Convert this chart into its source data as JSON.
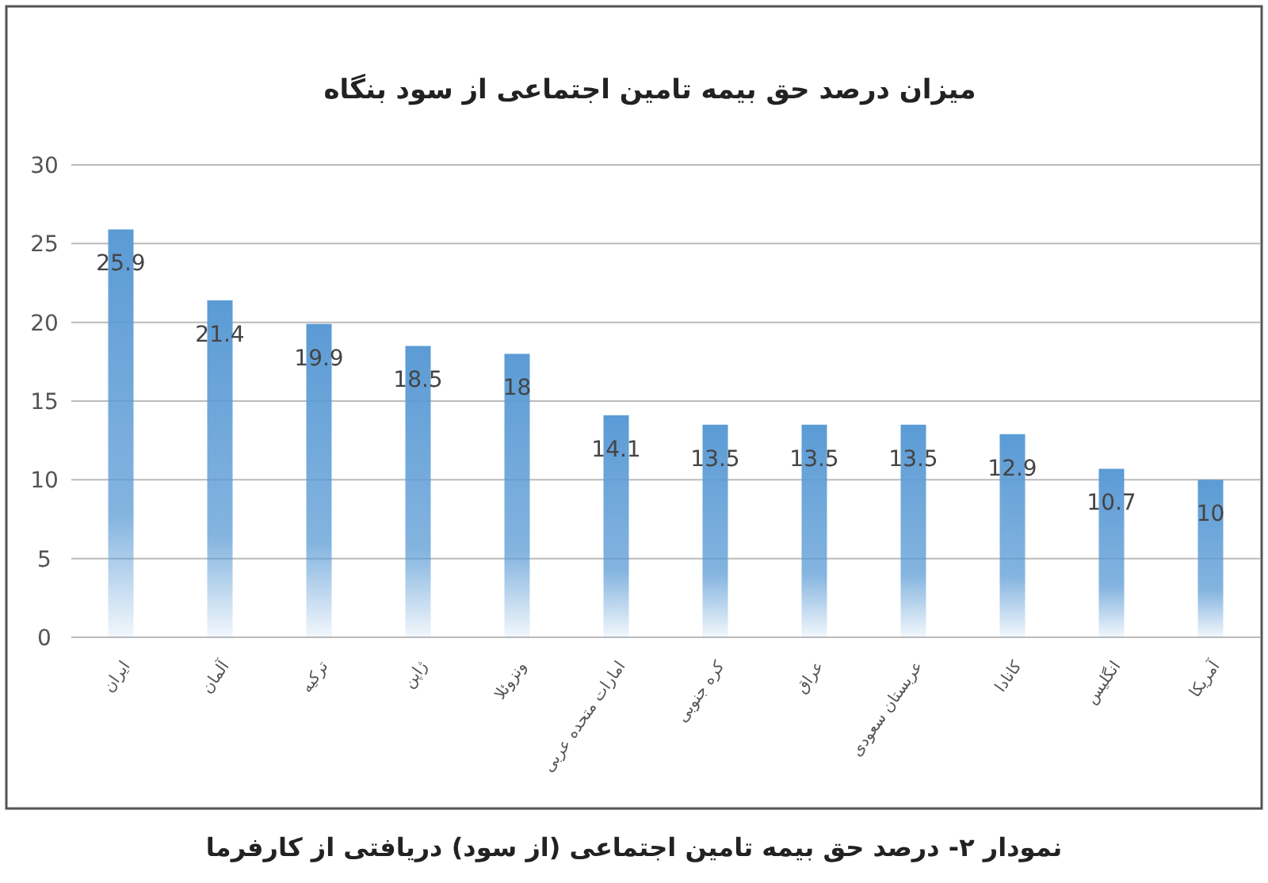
{
  "chart_data": {
    "type": "bar",
    "title": "میزان درصد حق بیمه تامین اجتماعی از سود بنگاه",
    "categories": [
      "ایران",
      "آلمان",
      "ترکیه",
      "ژاپن",
      "ونزوئلا",
      "امارات متحده عربی",
      "کره جنوبی",
      "عراق",
      "عربستان سعودی",
      "کانادا",
      "انگلیس",
      "آمریکا"
    ],
    "values": [
      25.9,
      21.4,
      19.9,
      18.5,
      18,
      14.1,
      13.5,
      13.5,
      13.5,
      12.9,
      10.7,
      10
    ],
    "color": "#5b9bd5",
    "data_labels": true,
    "grid": "y",
    "ylim": [
      0,
      30
    ],
    "yticks": [
      0,
      5,
      10,
      15,
      20,
      25,
      30
    ],
    "annotations": [
      "نمودار ۲- درصد حق بیمه تامین اجتماعی (از سود) دریافتی از کارفرما"
    ]
  }
}
